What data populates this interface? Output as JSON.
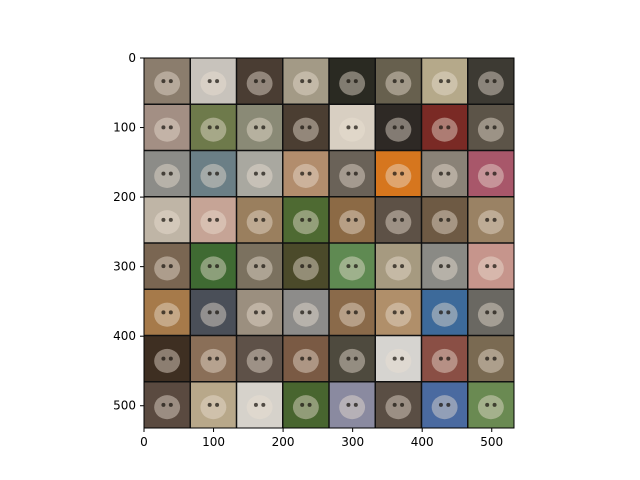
{
  "figure": {
    "image_grid": {
      "rows": 8,
      "cols": 8,
      "subject": "small fluffy dog photos (Shih Tzu–type), tiled in an 8×8 mosaic",
      "extent": [
        0,
        532,
        532,
        0
      ],
      "tile_colors": [
        [
          "#8b7d6d",
          "#c8c3bc",
          "#4a3d33",
          "#a39a86",
          "#2a2a22",
          "#67604e",
          "#b5a98a",
          "#3d3a33"
        ],
        [
          "#a38f84",
          "#6e7a4b",
          "#8a8a76",
          "#4b3e32",
          "#d8cfc2",
          "#2e2925",
          "#7a2a25",
          "#5c5448"
        ],
        [
          "#8c8c88",
          "#6b7f86",
          "#a9a8a0",
          "#b28d6d",
          "#6a6258",
          "#d6761e",
          "#8a8277",
          "#a8576a"
        ],
        [
          "#bfb5a6",
          "#c6a496",
          "#9a7f5e",
          "#4e6a32",
          "#8c6a45",
          "#5d5146",
          "#6e5a44",
          "#9a8264"
        ],
        [
          "#7a6652",
          "#3f6a32",
          "#7b715f",
          "#4b4a2a",
          "#5f8a52",
          "#a69a80",
          "#8a8a85",
          "#c6958c"
        ],
        [
          "#a67a4a",
          "#4a4f58",
          "#9b8f7f",
          "#8d8c8a",
          "#8a6a4a",
          "#b08f6a",
          "#3d6a9a",
          "#6a6862"
        ],
        [
          "#3e2f22",
          "#8a6f58",
          "#5e5148",
          "#7a5a44",
          "#4e4a3e",
          "#d6d4d0",
          "#8a4f45",
          "#7a6a52"
        ],
        [
          "#5a4a40",
          "#b8a88a",
          "#d6d2cb",
          "#48652f",
          "#8a8aa0",
          "#5a4e44",
          "#4a6aa0",
          "#6a8a52"
        ]
      ]
    },
    "x_axis": {
      "range": [
        0,
        532
      ],
      "ticks": [
        0,
        100,
        200,
        300,
        400,
        500
      ],
      "tick_labels": [
        "0",
        "100",
        "200",
        "300",
        "400",
        "500"
      ]
    },
    "y_axis": {
      "range": [
        532,
        0
      ],
      "ticks": [
        0,
        100,
        200,
        300,
        400,
        500
      ],
      "tick_labels": [
        "0",
        "100",
        "200",
        "300",
        "400",
        "500"
      ]
    }
  }
}
